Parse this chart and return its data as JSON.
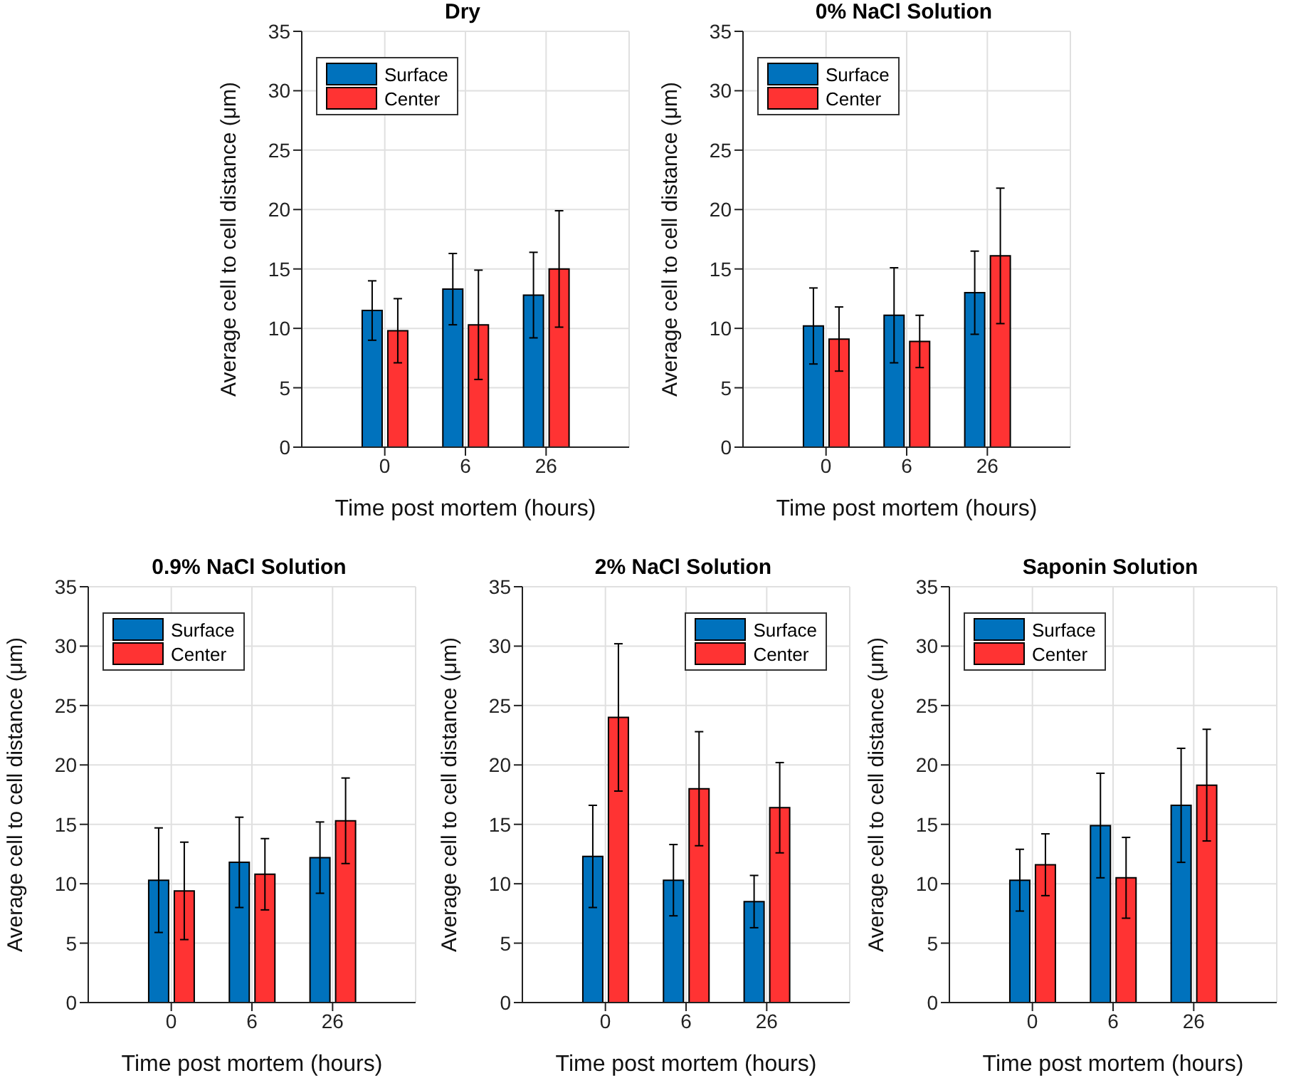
{
  "chart_data": [
    {
      "type": "bar",
      "title": "Dry",
      "xlabel": "Time post mortem (hours)",
      "ylabel": "Average cell to cell distance (μm)",
      "categories": [
        "0",
        "6",
        "26"
      ],
      "series": [
        {
          "name": "Surface",
          "color": "#0072bd",
          "values": [
            11.5,
            13.3,
            12.8
          ],
          "errors": [
            2.5,
            3.0,
            3.6
          ]
        },
        {
          "name": "Center",
          "color": "#ff3333",
          "values": [
            9.8,
            10.3,
            15.0
          ],
          "errors": [
            2.7,
            4.6,
            4.9
          ]
        }
      ],
      "ylim": [
        0,
        35
      ],
      "yticks": [
        0,
        5,
        10,
        15,
        20,
        25,
        30,
        35
      ],
      "grid": true,
      "legend": "top left"
    },
    {
      "type": "bar",
      "title": "0% NaCl Solution",
      "xlabel": "Time post mortem (hours)",
      "ylabel": "Average cell to cell distance (μm)",
      "categories": [
        "0",
        "6",
        "26"
      ],
      "series": [
        {
          "name": "Surface",
          "color": "#0072bd",
          "values": [
            10.2,
            11.1,
            13.0
          ],
          "errors": [
            3.2,
            4.0,
            3.5
          ]
        },
        {
          "name": "Center",
          "color": "#ff3333",
          "values": [
            9.1,
            8.9,
            16.1
          ],
          "errors": [
            2.7,
            2.2,
            5.7
          ]
        }
      ],
      "ylim": [
        0,
        35
      ],
      "yticks": [
        0,
        5,
        10,
        15,
        20,
        25,
        30,
        35
      ],
      "grid": true,
      "legend": "top left"
    },
    {
      "type": "bar",
      "title": "0.9% NaCl Solution",
      "xlabel": "Time post mortem (hours)",
      "ylabel": "Average cell to cell distance (μm)",
      "categories": [
        "0",
        "6",
        "26"
      ],
      "series": [
        {
          "name": "Surface",
          "color": "#0072bd",
          "values": [
            10.3,
            11.8,
            12.2
          ],
          "errors": [
            4.4,
            3.8,
            3.0
          ]
        },
        {
          "name": "Center",
          "color": "#ff3333",
          "values": [
            9.4,
            10.8,
            15.3
          ],
          "errors": [
            4.1,
            3.0,
            3.6
          ]
        }
      ],
      "ylim": [
        0,
        35
      ],
      "yticks": [
        0,
        5,
        10,
        15,
        20,
        25,
        30,
        35
      ],
      "grid": true,
      "legend": "top left"
    },
    {
      "type": "bar",
      "title": "2% NaCl Solution",
      "xlabel": "Time post mortem (hours)",
      "ylabel": "Average cell to cell distance (μm)",
      "categories": [
        "0",
        "6",
        "26"
      ],
      "series": [
        {
          "name": "Surface",
          "color": "#0072bd",
          "values": [
            12.3,
            10.3,
            8.5
          ],
          "errors": [
            4.3,
            3.0,
            2.2
          ]
        },
        {
          "name": "Center",
          "color": "#ff3333",
          "values": [
            24.0,
            18.0,
            16.4
          ],
          "errors": [
            6.2,
            4.8,
            3.8
          ]
        }
      ],
      "ylim": [
        0,
        35
      ],
      "yticks": [
        0,
        5,
        10,
        15,
        20,
        25,
        30,
        35
      ],
      "grid": true,
      "legend": "top right"
    },
    {
      "type": "bar",
      "title": "Saponin Solution",
      "xlabel": "Time post mortem (hours)",
      "ylabel": "Average cell to cell distance (μm)",
      "categories": [
        "0",
        "6",
        "26"
      ],
      "series": [
        {
          "name": "Surface",
          "color": "#0072bd",
          "values": [
            10.3,
            14.9,
            16.6
          ],
          "errors": [
            2.6,
            4.4,
            4.8
          ]
        },
        {
          "name": "Center",
          "color": "#ff3333",
          "values": [
            11.6,
            10.5,
            18.3
          ],
          "errors": [
            2.6,
            3.4,
            4.7
          ]
        }
      ],
      "ylim": [
        0,
        35
      ],
      "yticks": [
        0,
        5,
        10,
        15,
        20,
        25,
        30,
        35
      ],
      "grid": true,
      "legend": "top left"
    }
  ]
}
